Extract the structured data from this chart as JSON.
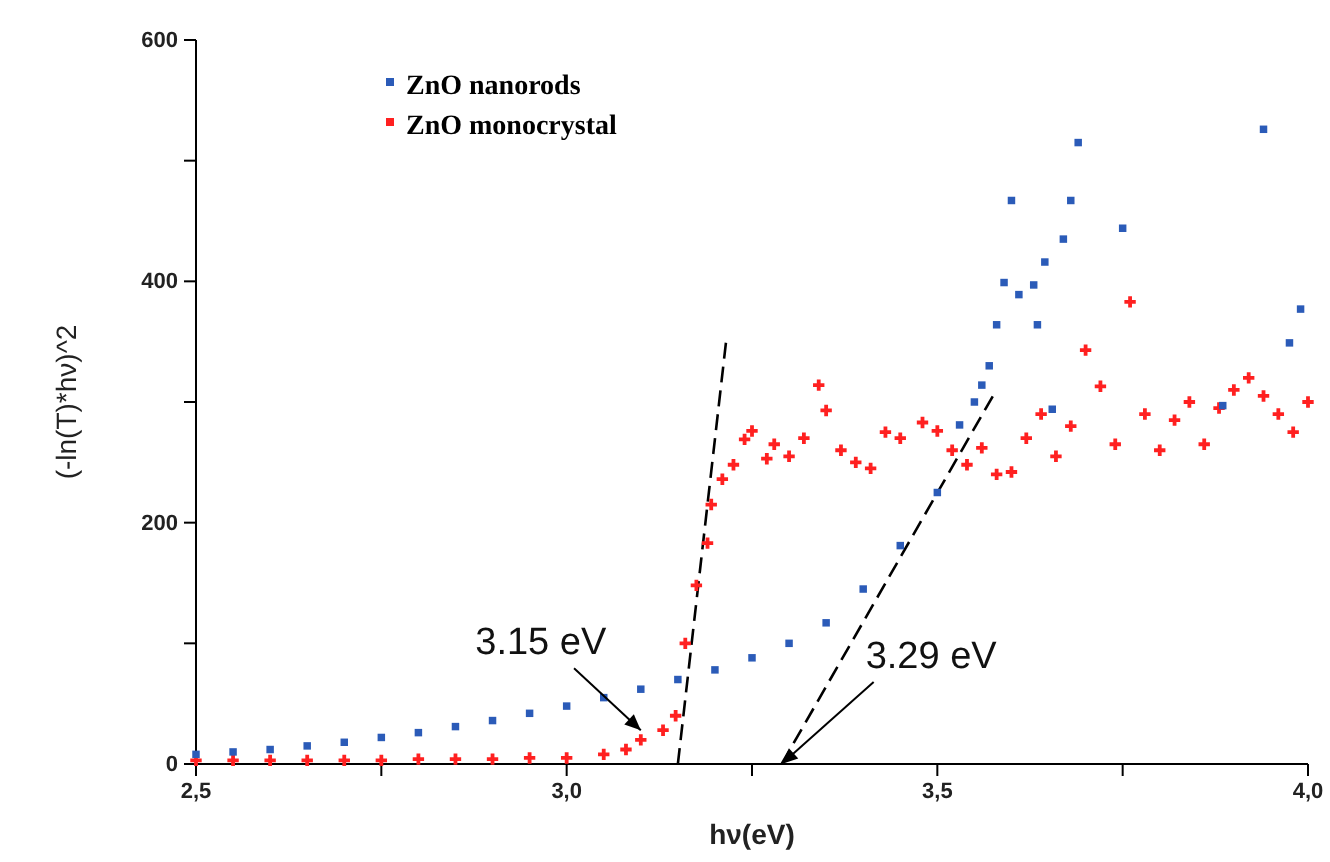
{
  "chart_data": {
    "type": "scatter",
    "xlabel": "hν(eV)",
    "ylabel": "(-ln(T)*hν)^2",
    "xlim": [
      2.5,
      4.0
    ],
    "ylim": [
      0,
      600
    ],
    "xticks": [
      {
        "value": 2.5,
        "label": "2,5"
      },
      {
        "value": 2.75,
        "label": null
      },
      {
        "value": 3.0,
        "label": "3,0"
      },
      {
        "value": 3.25,
        "label": null
      },
      {
        "value": 3.5,
        "label": "3,5"
      },
      {
        "value": 3.75,
        "label": null
      },
      {
        "value": 4.0,
        "label": "4,0"
      }
    ],
    "yticks": [
      0,
      {
        "value": 100,
        "label": null
      },
      200,
      {
        "value": 300,
        "label": null
      },
      400,
      {
        "value": 500,
        "label": null
      },
      600
    ],
    "legend": "top left",
    "grid": false,
    "series": [
      {
        "name": "ZnO nanorods",
        "color": "#2b5bb8",
        "marker": "square",
        "x": [
          2.5,
          2.55,
          2.6,
          2.65,
          2.7,
          2.75,
          2.8,
          2.85,
          2.9,
          2.95,
          3.0,
          3.05,
          3.1,
          3.15,
          3.2,
          3.25,
          3.3,
          3.35,
          3.4,
          3.45,
          3.5,
          3.53,
          3.55,
          3.56,
          3.57,
          3.58,
          3.59,
          3.6,
          3.61,
          3.63,
          3.635,
          3.645,
          3.655,
          3.67,
          3.68,
          3.69,
          3.75,
          3.885,
          3.94,
          3.975,
          3.99
        ],
        "values": [
          8,
          10,
          12,
          15,
          18,
          22,
          26,
          31,
          36,
          42,
          48,
          55,
          62,
          70,
          78,
          88,
          100,
          117,
          145,
          181,
          225,
          281,
          300,
          314,
          330,
          364,
          399,
          467,
          389,
          397,
          364,
          416,
          294,
          435,
          467,
          515,
          444,
          297,
          526,
          349,
          377
        ]
      },
      {
        "name": "ZnO monocrystal",
        "color": "#ff2020",
        "marker": "cross",
        "x": [
          2.5,
          2.55,
          2.6,
          2.65,
          2.7,
          2.75,
          2.8,
          2.85,
          2.9,
          2.95,
          3.0,
          3.05,
          3.08,
          3.1,
          3.13,
          3.147,
          3.16,
          3.175,
          3.19,
          3.195,
          3.21,
          3.225,
          3.24,
          3.25,
          3.27,
          3.28,
          3.3,
          3.32,
          3.34,
          3.35,
          3.37,
          3.39,
          3.41,
          3.43,
          3.45,
          3.48,
          3.5,
          3.52,
          3.54,
          3.56,
          3.58,
          3.6,
          3.62,
          3.64,
          3.66,
          3.68,
          3.7,
          3.72,
          3.74,
          3.76,
          3.78,
          3.8,
          3.82,
          3.84,
          3.86,
          3.88,
          3.9,
          3.92,
          3.94,
          3.96,
          3.98,
          4.0
        ],
        "values": [
          3,
          3,
          3,
          3,
          3,
          3,
          4,
          4,
          4,
          5,
          5,
          8,
          12,
          20,
          28,
          40,
          100,
          148,
          183,
          215,
          236,
          248,
          269,
          276,
          253,
          265,
          255,
          270,
          314,
          293,
          260,
          250,
          245,
          275,
          270,
          283,
          276,
          260,
          248,
          262,
          240,
          242,
          270,
          290,
          255,
          280,
          343,
          313,
          265,
          383,
          290,
          260,
          285,
          300,
          265,
          295,
          310,
          320,
          305,
          290,
          275,
          300
        ]
      },
      {
        "type": "line",
        "color": "#000000",
        "line_style": "dashed",
        "x": [
          3.15,
          3.215
        ],
        "values": [
          0,
          350
        ]
      },
      {
        "type": "line",
        "color": "#000000",
        "line_style": "dashed",
        "x": [
          3.29,
          3.575
        ],
        "values": [
          0,
          305
        ]
      }
    ],
    "annotations": [
      {
        "text": "3.15 eV",
        "x": 3.1,
        "y": 28
      },
      {
        "text": "3.29 eV",
        "x": 3.29,
        "y": 0
      }
    ]
  }
}
